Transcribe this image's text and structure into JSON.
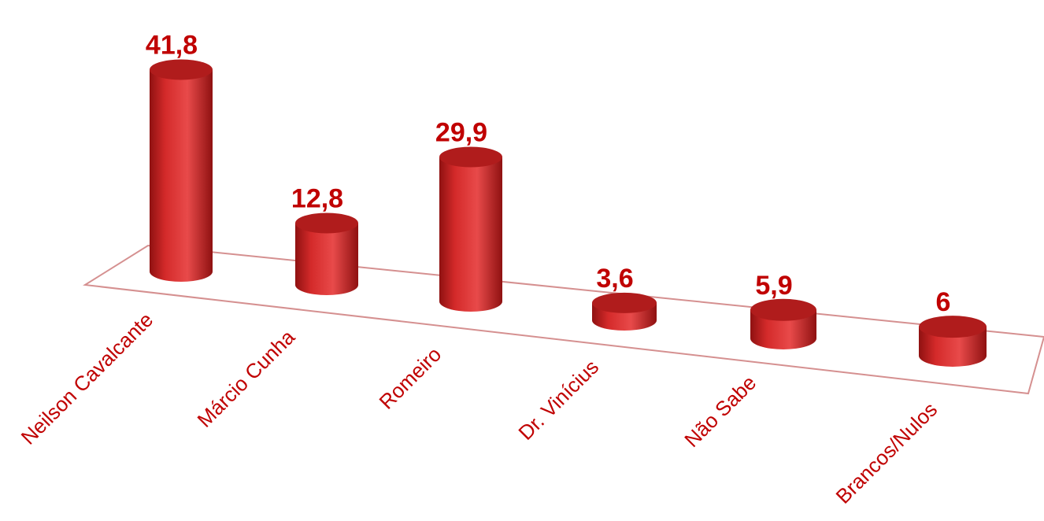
{
  "chart_data": {
    "type": "bar",
    "style": "3d-cylinder",
    "categories": [
      "Neilson Cavalcante",
      "Márcio Cunha",
      "Romeiro",
      "Dr. Vinícius",
      "Não Sabe",
      "Brancos/Nulos"
    ],
    "values": [
      41.8,
      12.8,
      29.9,
      3.6,
      5.9,
      6
    ],
    "value_labels": [
      "41,8",
      "12,8",
      "29,9",
      "3,6",
      "5,9",
      "6"
    ],
    "title": "",
    "xlabel": "",
    "ylabel": "",
    "ylim": [
      0,
      45
    ],
    "grid": false,
    "legend": "none",
    "colors": {
      "bar": "#d42a2a",
      "bar_dark": "#8f1111",
      "bar_light": "#e84a4a",
      "top": "#b01c1c",
      "label": "#c00000",
      "floor_line": "#d59090"
    }
  }
}
